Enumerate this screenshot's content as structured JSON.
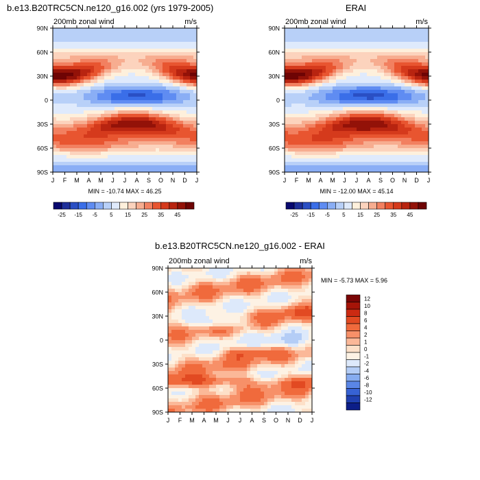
{
  "months": [
    "J",
    "F",
    "M",
    "A",
    "M",
    "J",
    "J",
    "A",
    "S",
    "O",
    "N",
    "D",
    "J"
  ],
  "lat_labels": [
    "90N",
    "60N",
    "30N",
    "0",
    "30S",
    "60S",
    "90S"
  ],
  "chart_data": [
    {
      "type": "heatmap",
      "title": "b.e13.B20TRC5CN.ne120_g16.002 (yrs 1979-2005)",
      "subtitle": "200mb zonal wind",
      "units": "m/s",
      "stats": "MIN = -10.74 MAX =  46.25",
      "xlabel": "",
      "ylabel": "",
      "x": [
        "J",
        "F",
        "M",
        "A",
        "M",
        "J",
        "J",
        "A",
        "S",
        "O",
        "N",
        "D",
        "J"
      ],
      "y": [
        "90N",
        "60N",
        "30N",
        "0",
        "30S",
        "60S",
        "90S"
      ],
      "ylim": [
        "90S",
        "90N"
      ],
      "colorbar": {
        "orientation": "horizontal",
        "tick_labels": [
          "-25",
          "-15",
          "-5",
          "5",
          "15",
          "25",
          "35",
          "45"
        ],
        "levels": [
          -30,
          -25,
          -20,
          -15,
          -10,
          -5,
          0,
          5,
          10,
          15,
          20,
          25,
          30,
          35,
          40,
          45,
          50
        ],
        "colors": [
          "#08086e",
          "#1e2f9a",
          "#2a4fc4",
          "#3a6ee8",
          "#5f8cf2",
          "#8aaef5",
          "#b8d0f8",
          "#dfeafc",
          "#fef0dc",
          "#fcd3bd",
          "#f7ad90",
          "#f28060",
          "#e85530",
          "#d53a1c",
          "#b82410",
          "#931208",
          "#6e0404"
        ]
      },
      "features": {
        "nh_jet": {
          "lat": 30,
          "peak_months": [
            "J",
            "F",
            "D"
          ],
          "max": 46.25
        },
        "sh_jet": {
          "lat": -30,
          "peak_months": [
            "J",
            "A"
          ]
        },
        "tropical_easterlies": {
          "lat": 5,
          "peak_months": [
            "J",
            "A"
          ],
          "min": -10.74
        }
      }
    },
    {
      "type": "heatmap",
      "title": "ERAI",
      "subtitle": "200mb zonal wind",
      "units": "m/s",
      "stats": "MIN = -12.00 MAX =  45.14",
      "xlabel": "",
      "ylabel": "",
      "x": [
        "J",
        "F",
        "M",
        "A",
        "M",
        "J",
        "J",
        "A",
        "S",
        "O",
        "N",
        "D",
        "J"
      ],
      "y": [
        "90N",
        "60N",
        "30N",
        "0",
        "30S",
        "60S",
        "90S"
      ],
      "ylim": [
        "90S",
        "90N"
      ],
      "colorbar": {
        "orientation": "horizontal",
        "tick_labels": [
          "-25",
          "-15",
          "-5",
          "5",
          "15",
          "25",
          "35",
          "45"
        ]
      },
      "features": {
        "nh_jet": {
          "lat": 30,
          "peak_months": [
            "J",
            "F",
            "D"
          ],
          "max": 45.14
        },
        "sh_jet": {
          "lat": -30,
          "peak_months": [
            "J",
            "A"
          ]
        },
        "tropical_easterlies": {
          "lat": 5,
          "peak_months": [
            "J",
            "A"
          ],
          "min": -12.0
        }
      }
    },
    {
      "type": "heatmap",
      "title": "b.e13.B20TRC5CN.ne120_g16.002 - ERAI",
      "subtitle": "200mb zonal wind",
      "units": "m/s",
      "stats": "MIN =  -5.73 MAX =   5.96",
      "xlabel": "",
      "ylabel": "",
      "x": [
        "J",
        "F",
        "M",
        "A",
        "M",
        "J",
        "J",
        "A",
        "S",
        "O",
        "N",
        "D",
        "J"
      ],
      "y": [
        "90N",
        "60N",
        "30N",
        "0",
        "30S",
        "60S",
        "90S"
      ],
      "ylim": [
        "90S",
        "90N"
      ],
      "colorbar": {
        "orientation": "vertical",
        "tick_labels": [
          "12",
          "10",
          "8",
          "6",
          "4",
          "2",
          "1",
          "0",
          "-1",
          "-2",
          "-4",
          "-6",
          "-8",
          "-10",
          "-12"
        ],
        "levels": [
          12,
          10,
          8,
          6,
          4,
          2,
          1,
          0,
          -1,
          -2,
          -4,
          -6,
          -8,
          -10,
          -12
        ],
        "colors": [
          "#7a0606",
          "#a51408",
          "#cc2a12",
          "#e24a22",
          "#f06a3c",
          "#f79068",
          "#fbb898",
          "#fde0c8",
          "#fdf2e4",
          "#dde9fb",
          "#b4cdf6",
          "#86acf0",
          "#5a86e6",
          "#3762d4",
          "#2040b0",
          "#0c1e88"
        ]
      }
    }
  ]
}
